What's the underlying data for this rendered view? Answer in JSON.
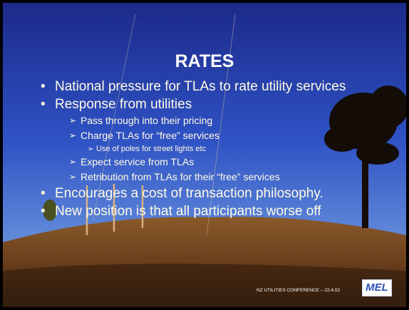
{
  "slide": {
    "title": "RATES",
    "bullets": [
      {
        "text": "National pressure for TLAs to rate utility services",
        "sub": []
      },
      {
        "text": "Response from utilities",
        "sub": [
          {
            "text": "Pass through into their pricing",
            "sub": []
          },
          {
            "text": "Charge TLAs for “free” services",
            "sub": [
              {
                "text": "Use of poles for street lights etc"
              }
            ]
          },
          {
            "text": "Expect service from TLAs",
            "sub": []
          },
          {
            "text": "Retribution from TLAs for their “free” services",
            "sub": []
          }
        ]
      },
      {
        "text": "Encourages a cost of transaction philosophy.",
        "sub": []
      },
      {
        "text": "New position is that all participants worse off",
        "sub": []
      }
    ],
    "footer": "NZ UTILITIES CONFERENCE – 22.4.02",
    "logo": "MEL"
  }
}
